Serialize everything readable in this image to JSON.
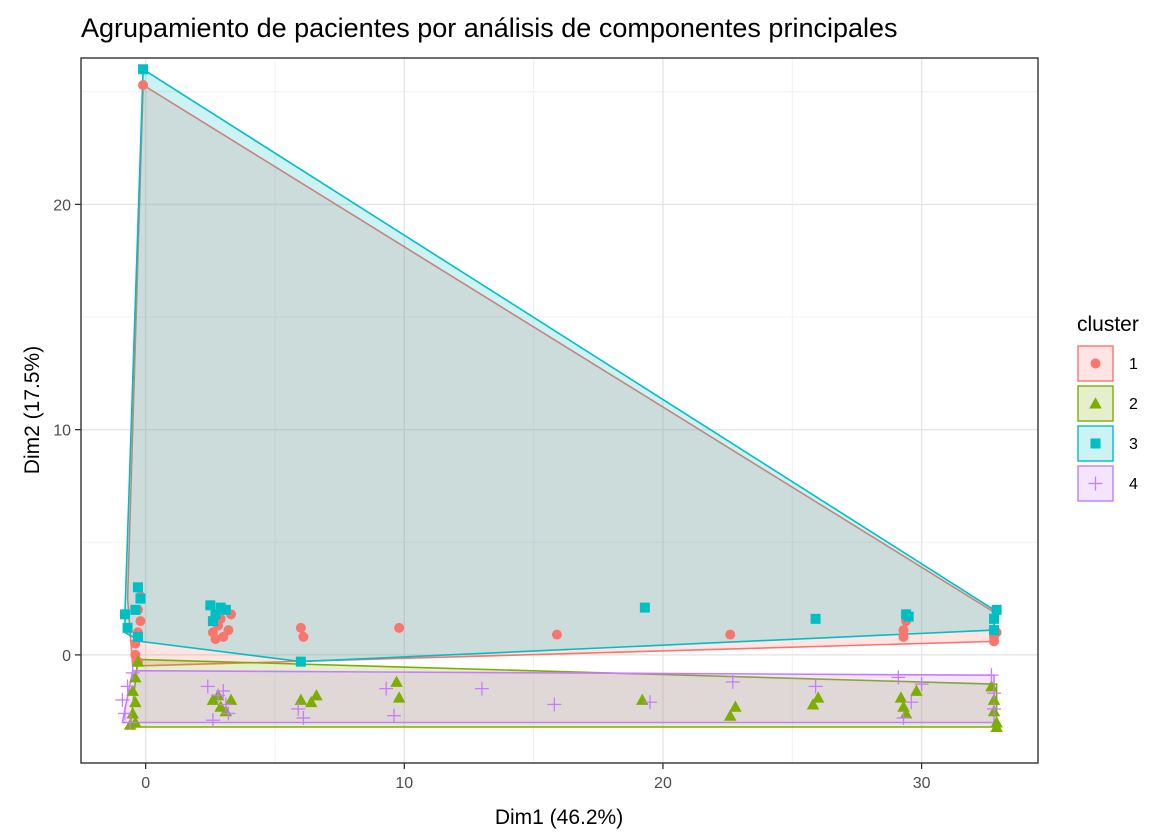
{
  "chart_data": {
    "type": "scatter",
    "title": "Agrupamiento de pacientes por análisis de componentes principales",
    "xlabel": "Dim1 (46.2%)",
    "ylabel": "Dim2 (17.5%)",
    "xlim": [
      -2.5,
      34.5
    ],
    "ylim": [
      -4.8,
      26.5
    ],
    "x_ticks": [
      0,
      10,
      20,
      30
    ],
    "y_ticks": [
      0,
      10,
      20
    ],
    "grid": true,
    "legend": {
      "title": "cluster",
      "position": "right"
    },
    "series": [
      {
        "name": "1",
        "color": "#F8766D",
        "shape": "circle",
        "hull": [
          [
            -0.5,
            -0.5
          ],
          [
            32.8,
            0.6
          ],
          [
            32.8,
            1.9
          ],
          [
            -0.1,
            25.3
          ],
          [
            -0.7,
            2.5
          ]
        ],
        "points": [
          [
            -0.1,
            25.3
          ],
          [
            -0.2,
            2.6
          ],
          [
            -0.3,
            2.0
          ],
          [
            -0.2,
            1.5
          ],
          [
            -0.3,
            1.0
          ],
          [
            -0.4,
            0.5
          ],
          [
            -0.4,
            0.0
          ],
          [
            -0.3,
            -0.3
          ],
          [
            2.6,
            1.0
          ],
          [
            2.8,
            1.3
          ],
          [
            2.9,
            1.6
          ],
          [
            3.0,
            0.8
          ],
          [
            3.2,
            1.1
          ],
          [
            3.3,
            1.8
          ],
          [
            2.7,
            0.7
          ],
          [
            6.0,
            1.2
          ],
          [
            6.1,
            0.8
          ],
          [
            9.8,
            1.2
          ],
          [
            15.9,
            0.9
          ],
          [
            22.6,
            0.9
          ],
          [
            29.3,
            0.8
          ],
          [
            29.3,
            1.1
          ],
          [
            29.4,
            1.5
          ],
          [
            32.8,
            0.6
          ],
          [
            32.8,
            0.8
          ],
          [
            32.9,
            1.0
          ]
        ]
      },
      {
        "name": "2",
        "color": "#7CAE00",
        "shape": "triangle",
        "hull": [
          [
            -0.6,
            -3.2
          ],
          [
            32.9,
            -3.2
          ],
          [
            32.9,
            -1.3
          ],
          [
            -0.3,
            -0.2
          ]
        ],
        "points": [
          [
            -0.3,
            -0.3
          ],
          [
            -0.4,
            -1.0
          ],
          [
            -0.5,
            -1.6
          ],
          [
            -0.4,
            -2.1
          ],
          [
            -0.5,
            -2.6
          ],
          [
            -0.4,
            -3.0
          ],
          [
            -0.6,
            -3.1
          ],
          [
            2.6,
            -2.0
          ],
          [
            2.9,
            -2.3
          ],
          [
            3.1,
            -2.5
          ],
          [
            3.3,
            -2.0
          ],
          [
            2.8,
            -1.8
          ],
          [
            6.0,
            -2.0
          ],
          [
            6.4,
            -2.1
          ],
          [
            6.6,
            -1.8
          ],
          [
            9.7,
            -1.2
          ],
          [
            9.8,
            -1.9
          ],
          [
            19.2,
            -2.0
          ],
          [
            22.6,
            -2.7
          ],
          [
            22.8,
            -2.3
          ],
          [
            25.8,
            -2.2
          ],
          [
            26.0,
            -1.9
          ],
          [
            29.2,
            -1.9
          ],
          [
            29.3,
            -2.3
          ],
          [
            29.4,
            -2.6
          ],
          [
            29.8,
            -1.6
          ],
          [
            32.7,
            -1.4
          ],
          [
            32.8,
            -2.0
          ],
          [
            32.8,
            -2.5
          ],
          [
            32.9,
            -3.0
          ],
          [
            32.9,
            -3.2
          ]
        ]
      },
      {
        "name": "3",
        "color": "#00BFC4",
        "shape": "square",
        "hull": [
          [
            -0.8,
            1.0
          ],
          [
            -0.2,
            0.6
          ],
          [
            6.0,
            -0.3
          ],
          [
            32.8,
            1.1
          ],
          [
            32.8,
            2.0
          ],
          [
            -0.1,
            26.0
          ],
          [
            -0.8,
            1.9
          ]
        ],
        "points": [
          [
            -0.1,
            26.0
          ],
          [
            -0.3,
            3.0
          ],
          [
            -0.2,
            2.5
          ],
          [
            -0.4,
            2.0
          ],
          [
            -0.8,
            1.8
          ],
          [
            -0.7,
            1.2
          ],
          [
            -0.3,
            0.8
          ],
          [
            2.5,
            2.2
          ],
          [
            2.7,
            1.8
          ],
          [
            2.9,
            2.1
          ],
          [
            3.1,
            2.0
          ],
          [
            2.6,
            1.5
          ],
          [
            6.0,
            -0.3
          ],
          [
            19.3,
            2.1
          ],
          [
            25.9,
            1.6
          ],
          [
            29.4,
            1.8
          ],
          [
            29.5,
            1.7
          ],
          [
            32.8,
            1.1
          ],
          [
            32.8,
            1.6
          ],
          [
            32.9,
            2.0
          ]
        ]
      },
      {
        "name": "4",
        "color": "#C77CFF",
        "shape": "cross",
        "hull": [
          [
            -0.9,
            -3.0
          ],
          [
            32.8,
            -3.0
          ],
          [
            32.8,
            -0.9
          ],
          [
            -0.5,
            -0.7
          ]
        ],
        "points": [
          [
            -0.5,
            -0.8
          ],
          [
            -0.7,
            -1.4
          ],
          [
            -0.9,
            -2.0
          ],
          [
            -0.8,
            -2.6
          ],
          [
            -0.6,
            -3.0
          ],
          [
            2.4,
            -1.4
          ],
          [
            2.8,
            -1.8
          ],
          [
            3.1,
            -2.2
          ],
          [
            3.2,
            -2.6
          ],
          [
            2.6,
            -2.9
          ],
          [
            3.0,
            -1.6
          ],
          [
            5.9,
            -2.4
          ],
          [
            6.1,
            -2.8
          ],
          [
            9.3,
            -1.5
          ],
          [
            9.6,
            -2.7
          ],
          [
            13.0,
            -1.5
          ],
          [
            15.8,
            -2.2
          ],
          [
            19.5,
            -2.1
          ],
          [
            22.7,
            -1.2
          ],
          [
            25.9,
            -1.4
          ],
          [
            29.1,
            -1.0
          ],
          [
            29.3,
            -2.8
          ],
          [
            29.6,
            -2.1
          ],
          [
            30.0,
            -1.3
          ],
          [
            32.7,
            -0.9
          ],
          [
            32.8,
            -1.7
          ],
          [
            32.8,
            -2.4
          ]
        ]
      }
    ]
  }
}
